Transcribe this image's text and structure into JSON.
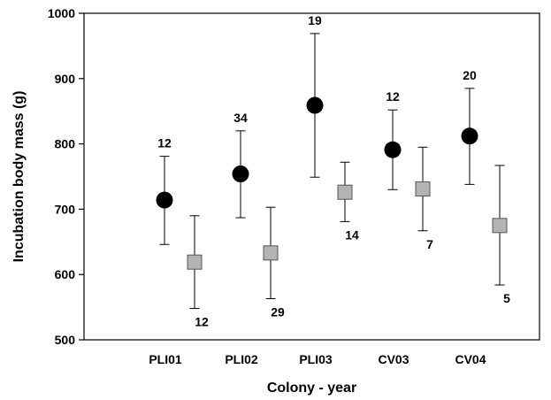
{
  "chart_data": {
    "type": "scatter",
    "xlabel": "Colony - year",
    "ylabel": "Incubation body mass (g)",
    "ylim": [
      500,
      1000
    ],
    "yticks": [
      500,
      600,
      700,
      800,
      900,
      1000
    ],
    "categories": [
      "PLI01",
      "PLI02",
      "PLI03",
      "CV03",
      "CV04"
    ],
    "grid": false,
    "series": [
      {
        "marker": "circle",
        "color": "#000000",
        "values": [
          714,
          754,
          859,
          791,
          812
        ],
        "lower": [
          646,
          687,
          749,
          730,
          738
        ],
        "upper": [
          781,
          820,
          969,
          852,
          885
        ],
        "n": [
          "12",
          "34",
          "19",
          "12",
          "20"
        ],
        "n_position": "above"
      },
      {
        "marker": "square",
        "color": "#b3b3b3",
        "values": [
          619,
          633,
          726,
          731,
          675
        ],
        "lower": [
          548,
          563,
          681,
          667,
          584
        ],
        "upper": [
          690,
          703,
          772,
          795,
          767
        ],
        "n": [
          "12",
          "29",
          "14",
          "7",
          "5"
        ],
        "n_position": "below"
      }
    ]
  }
}
